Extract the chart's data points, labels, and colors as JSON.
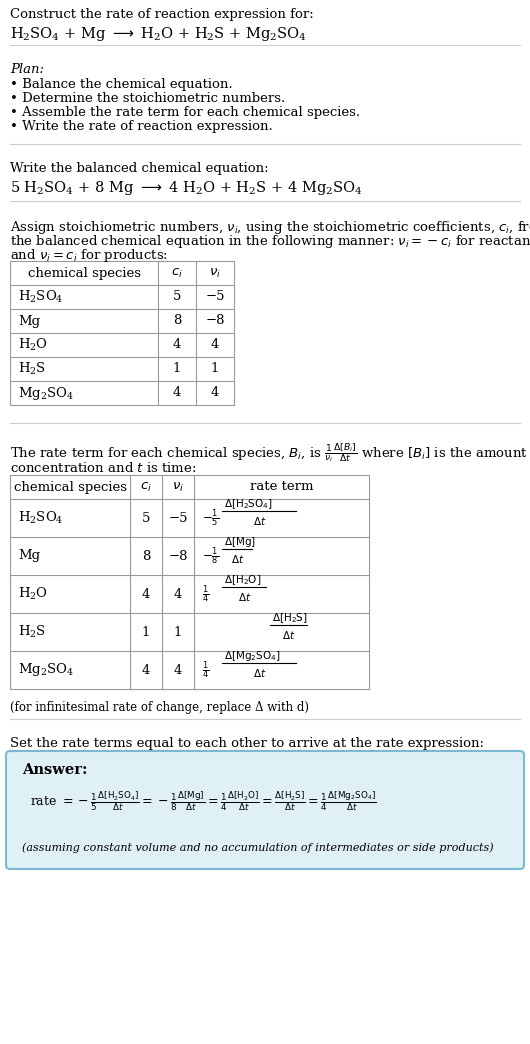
{
  "title_line1": "Construct the rate of reaction expression for:",
  "plan_header": "Plan:",
  "plan_bullets": [
    "• Balance the chemical equation.",
    "• Determine the stoichiometric numbers.",
    "• Assemble the rate term for each chemical species.",
    "• Write the rate of reaction expression."
  ],
  "balanced_header": "Write the balanced chemical equation:",
  "stoich_line1": "Assign stoichiometric numbers, νᵢ, using the stoichiometric coefficients, cᵢ, from",
  "stoich_line2": "the balanced chemical equation in the following manner: νᵢ = −cᵢ for reactants",
  "stoich_line3": "and νᵢ = cᵢ for products:",
  "table1_rows": [
    [
      "H_2SO_4",
      "5",
      "−5"
    ],
    [
      "Mg",
      "8",
      "−8"
    ],
    [
      "H_2O",
      "4",
      "4"
    ],
    [
      "H_2S",
      "1",
      "1"
    ],
    [
      "Mg_2SO_4",
      "4",
      "4"
    ]
  ],
  "table2_rows": [
    [
      "H_2SO_4",
      "5",
      "−5"
    ],
    [
      "Mg",
      "8",
      "−8"
    ],
    [
      "H_2O",
      "4",
      "4"
    ],
    [
      "H_2S",
      "1",
      "1"
    ],
    [
      "Mg_2SO_4",
      "4",
      "4"
    ]
  ],
  "infinitesimal_note": "(for infinitesimal rate of change, replace Δ with d)",
  "rate_expr_intro": "Set the rate terms equal to each other to arrive at the rate expression:",
  "answer_label": "Answer:",
  "answer_box_color": "#dff0f7",
  "answer_box_border": "#7ab8d4",
  "bg_color": "#ffffff",
  "text_color": "#000000",
  "table_border_color": "#999999",
  "section_line_color": "#cccccc",
  "font_size": 9.5,
  "small_font_size": 8.5
}
